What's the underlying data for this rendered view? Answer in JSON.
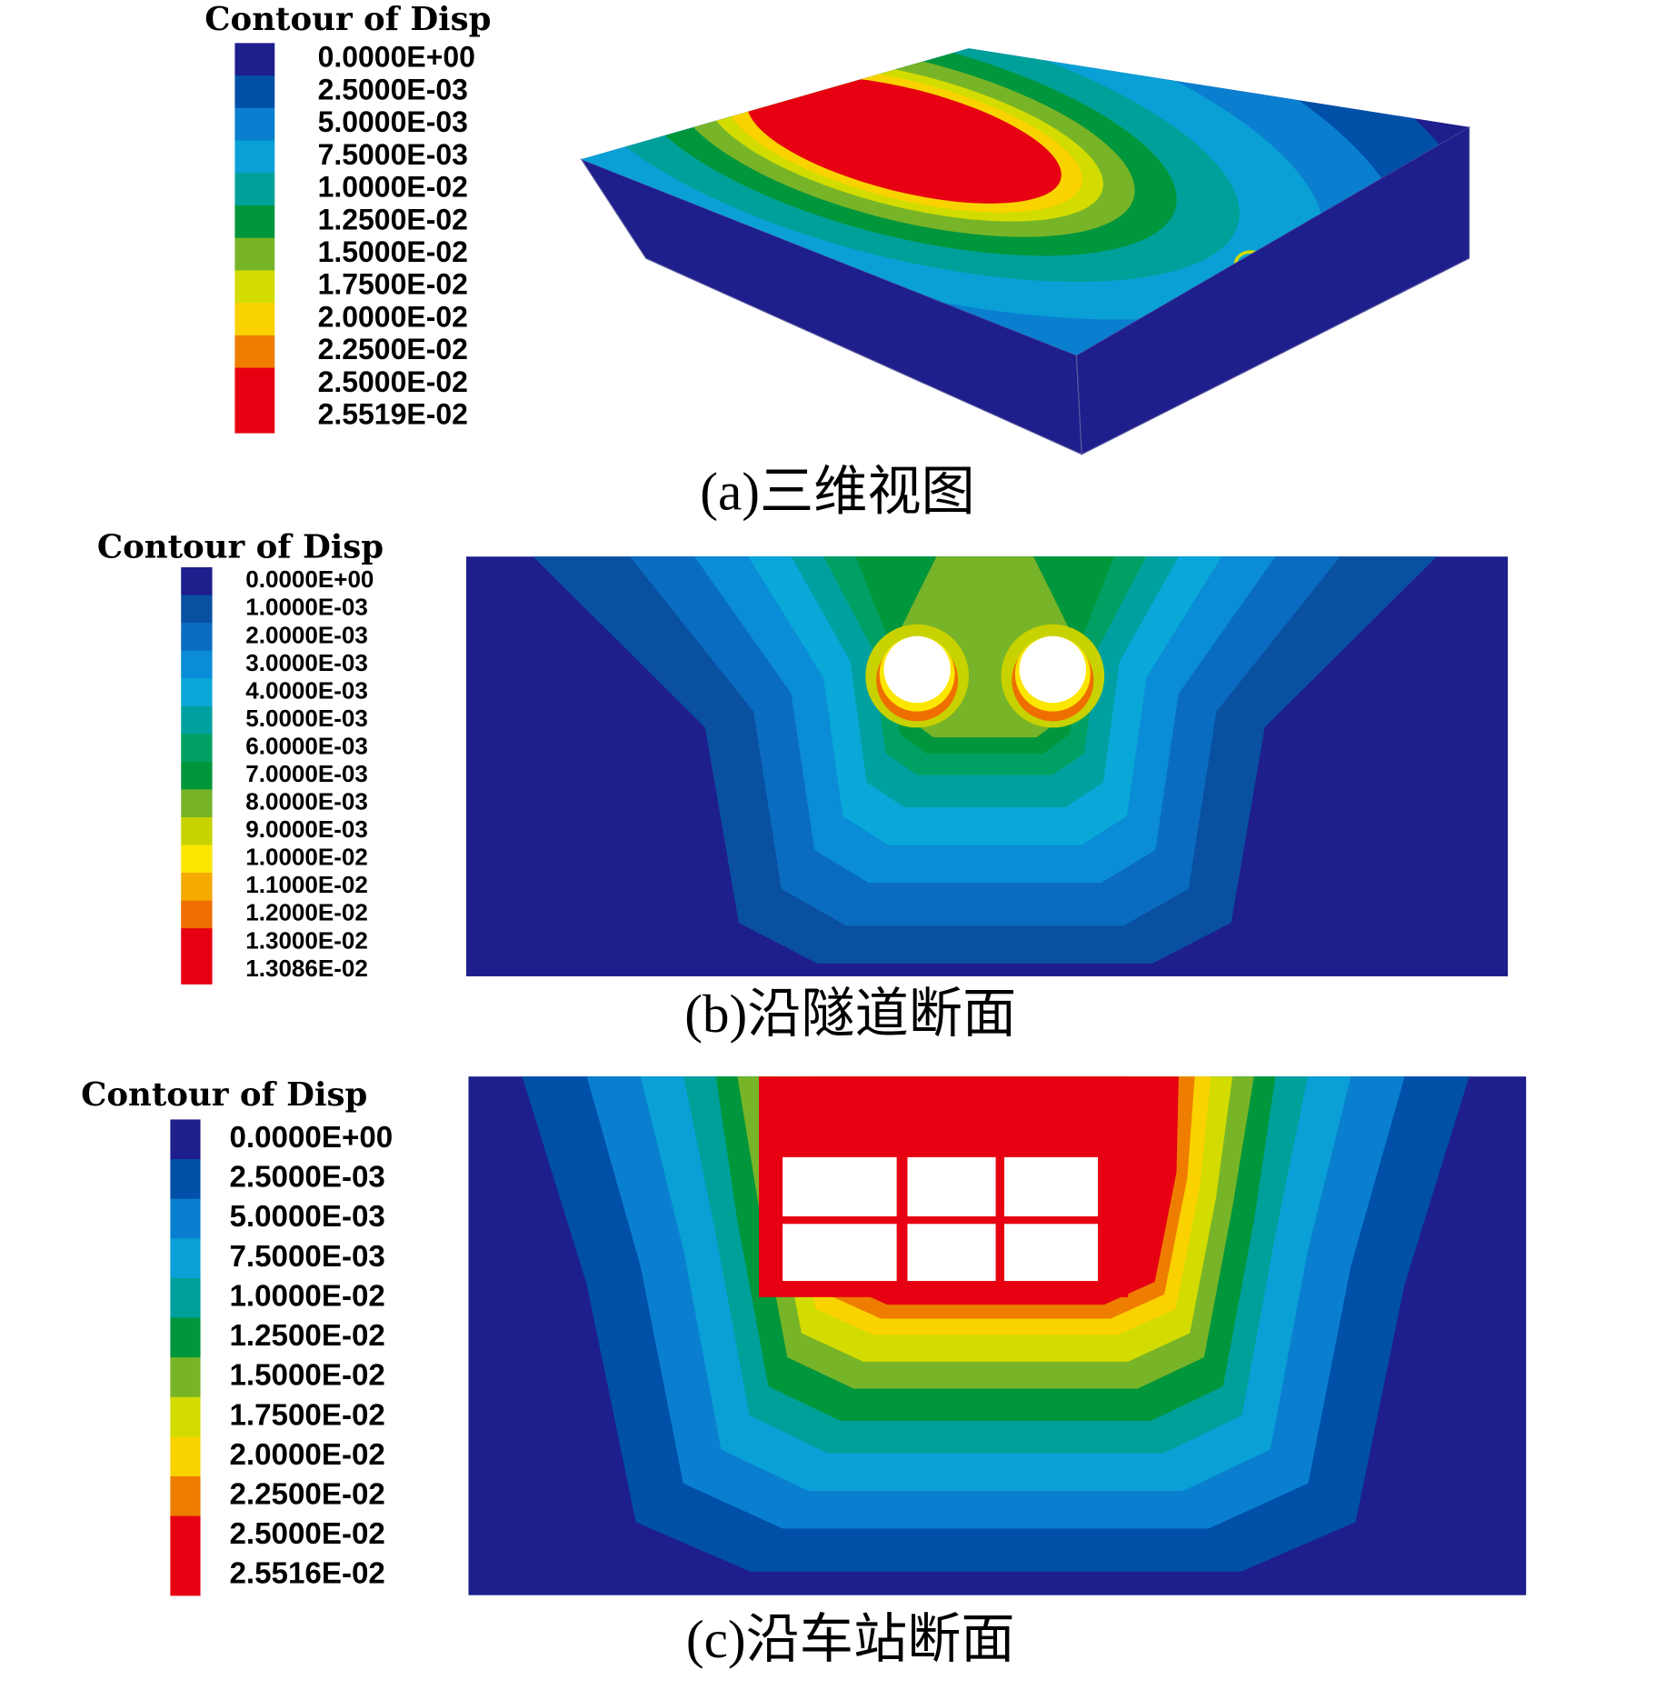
{
  "panels": [
    {
      "legend": {
        "title": "Contour of Disp",
        "labels": [
          "0.0000E+00",
          "2.5000E-03",
          "5.0000E-03",
          "7.5000E-03",
          "1.0000E-02",
          "1.2500E-02",
          "1.5000E-02",
          "1.7500E-02",
          "2.0000E-02",
          "2.2500E-02",
          "2.5000E-02",
          "2.5519E-02"
        ],
        "colors": [
          "#1e1e8c",
          "#0050a8",
          "#0a7fd0",
          "#0aa0d6",
          "#00a09a",
          "#00963c",
          "#78b428",
          "#d2dc00",
          "#fad200",
          "#ee7d00",
          "#e60012",
          "#e60012"
        ]
      },
      "caption": "(a)三维视图"
    },
    {
      "legend": {
        "title": "Contour of Disp",
        "labels": [
          "0.0000E+00",
          "1.0000E-03",
          "2.0000E-03",
          "3.0000E-03",
          "4.0000E-03",
          "5.0000E-03",
          "6.0000E-03",
          "7.0000E-03",
          "8.0000E-03",
          "9.0000E-03",
          "1.0000E-02",
          "1.1000E-02",
          "1.2000E-02",
          "1.3000E-02",
          "1.3086E-02"
        ],
        "colors": [
          "#1e1e8c",
          "#0a50a0",
          "#0a6cc0",
          "#0a8cd6",
          "#0aa8d8",
          "#00a0a0",
          "#00a064",
          "#00963c",
          "#78b428",
          "#c8d200",
          "#fae600",
          "#f5aa00",
          "#ee6e00",
          "#e60012",
          "#e60012"
        ]
      },
      "caption": "(b)沿隧道断面"
    },
    {
      "legend": {
        "title": "Contour of Disp",
        "labels": [
          "0.0000E+00",
          "2.5000E-03",
          "5.0000E-03",
          "7.5000E-03",
          "1.0000E-02",
          "1.2500E-02",
          "1.5000E-02",
          "1.7500E-02",
          "2.0000E-02",
          "2.2500E-02",
          "2.5000E-02",
          "2.5516E-02"
        ],
        "colors": [
          "#1e1e8c",
          "#0050a8",
          "#0a7fd0",
          "#0aa0d6",
          "#00a09a",
          "#00963c",
          "#78b428",
          "#d2dc00",
          "#fad200",
          "#ee7d00",
          "#e60012",
          "#e60012"
        ]
      },
      "caption": "(c)沿车站断面"
    }
  ]
}
